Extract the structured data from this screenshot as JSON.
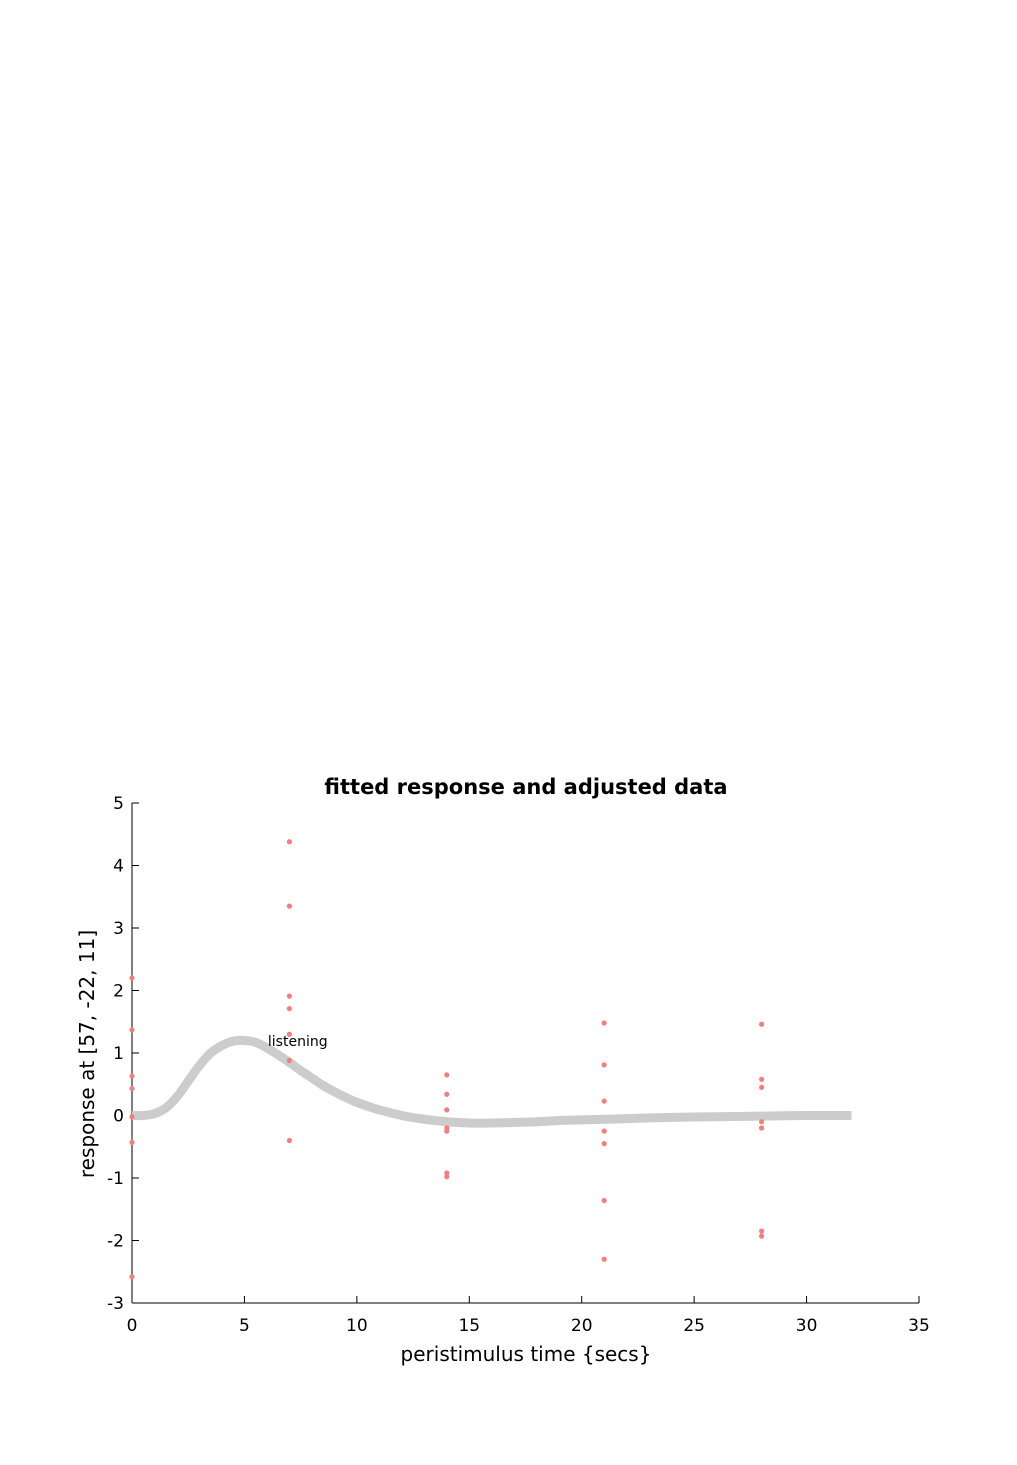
{
  "chart_data": {
    "type": "scatter",
    "title": "fitted response and adjusted data",
    "xlabel": "peristimulus time {secs}",
    "ylabel": "response at [57, -22, 11]",
    "xlim": [
      0,
      35
    ],
    "ylim": [
      -3,
      5
    ],
    "xticks": [
      0,
      5,
      10,
      15,
      20,
      25,
      30,
      35
    ],
    "yticks": [
      -3,
      -2,
      -1,
      0,
      1,
      2,
      3,
      4,
      5
    ],
    "xtick_labels": [
      "0",
      "5",
      "10",
      "15",
      "20",
      "25",
      "30",
      "35"
    ],
    "ytick_labels": [
      "-3",
      "-2",
      "-1",
      "0",
      "1",
      "2",
      "3",
      "4",
      "5"
    ],
    "grid": false,
    "fitted_curve": {
      "color": "#cccccc",
      "x": [
        0,
        0.5,
        1,
        1.5,
        2,
        2.5,
        3,
        3.5,
        4,
        4.5,
        5,
        5.5,
        6,
        6.5,
        7,
        7.5,
        8,
        8.5,
        9,
        9.5,
        10,
        11,
        12,
        13,
        14,
        15,
        16,
        17,
        18,
        19,
        20,
        22,
        24,
        26,
        28,
        30,
        32
      ],
      "y": [
        0,
        0.0,
        0.03,
        0.12,
        0.3,
        0.55,
        0.8,
        1.0,
        1.12,
        1.19,
        1.2,
        1.17,
        1.08,
        0.97,
        0.85,
        0.72,
        0.6,
        0.48,
        0.38,
        0.29,
        0.21,
        0.09,
        0.0,
        -0.06,
        -0.1,
        -0.12,
        -0.12,
        -0.11,
        -0.1,
        -0.08,
        -0.07,
        -0.05,
        -0.03,
        -0.02,
        -0.01,
        0.0,
        0.0
      ]
    },
    "adjusted_data": {
      "color": "#f08080",
      "points": [
        {
          "x": 0,
          "y": 2.2
        },
        {
          "x": 0,
          "y": 1.37
        },
        {
          "x": 0,
          "y": 0.63
        },
        {
          "x": 0,
          "y": 0.43
        },
        {
          "x": 0,
          "y": -0.02
        },
        {
          "x": 0,
          "y": -0.43
        },
        {
          "x": 0,
          "y": -2.58
        },
        {
          "x": 7,
          "y": 4.38
        },
        {
          "x": 7,
          "y": 3.35
        },
        {
          "x": 7,
          "y": 1.91
        },
        {
          "x": 7,
          "y": 1.71
        },
        {
          "x": 7,
          "y": 1.3
        },
        {
          "x": 7,
          "y": 0.88
        },
        {
          "x": 7,
          "y": -0.4
        },
        {
          "x": 14,
          "y": 0.65
        },
        {
          "x": 14,
          "y": 0.34
        },
        {
          "x": 14,
          "y": 0.09
        },
        {
          "x": 14,
          "y": -0.2
        },
        {
          "x": 14,
          "y": -0.25
        },
        {
          "x": 14,
          "y": -0.92
        },
        {
          "x": 14,
          "y": -0.98
        },
        {
          "x": 21,
          "y": 1.48
        },
        {
          "x": 21,
          "y": 0.81
        },
        {
          "x": 21,
          "y": 0.23
        },
        {
          "x": 21,
          "y": -0.25
        },
        {
          "x": 21,
          "y": -0.45
        },
        {
          "x": 21,
          "y": -1.36
        },
        {
          "x": 21,
          "y": -2.3
        },
        {
          "x": 28,
          "y": 1.46
        },
        {
          "x": 28,
          "y": 0.58
        },
        {
          "x": 28,
          "y": 0.45
        },
        {
          "x": 28,
          "y": -0.1
        },
        {
          "x": 28,
          "y": -0.2
        },
        {
          "x": 28,
          "y": -1.85
        },
        {
          "x": 28,
          "y": -1.93
        }
      ]
    },
    "annotations": [
      {
        "text": "listening",
        "x": 6,
        "y": 1.18
      }
    ]
  }
}
